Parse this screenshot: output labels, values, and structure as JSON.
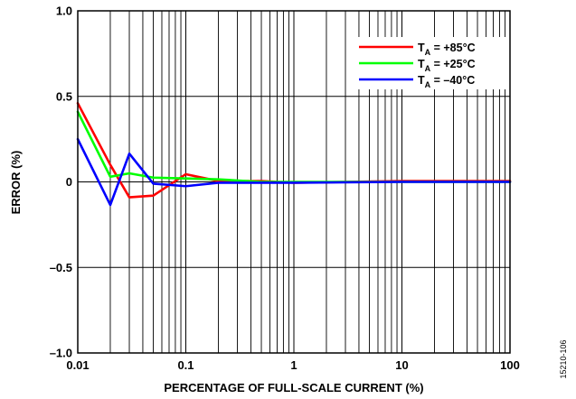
{
  "chart_data": {
    "type": "line",
    "xlabel": "PERCENTAGE OF FULL-SCALE CURRENT (%)",
    "ylabel": "ERROR (%)",
    "x_scale": "log",
    "xlim": [
      0.01,
      100
    ],
    "ylim": [
      -1.0,
      1.0
    ],
    "x_ticks": [
      0.01,
      0.1,
      1,
      10,
      100
    ],
    "x_tick_labels": [
      "0.01",
      "0.1",
      "1",
      "10",
      "100"
    ],
    "y_ticks": [
      1.0,
      0.5,
      0,
      -0.5,
      -1.0
    ],
    "y_tick_labels": [
      "1.0",
      "0.5",
      "0",
      "–0.5",
      "–1.0"
    ],
    "grid": true,
    "legend_position": "top-right",
    "series": [
      {
        "label_main": "T",
        "label_sub": "A",
        "label_rest": " = +85°C",
        "color": "#ff0000",
        "x": [
          0.01,
          0.02,
          0.03,
          0.05,
          0.1,
          0.2,
          0.5,
          1,
          10,
          100
        ],
        "y": [
          0.46,
          0.1,
          -0.09,
          -0.08,
          0.045,
          0.005,
          0.005,
          -0.005,
          0.005,
          0.005
        ]
      },
      {
        "label_main": "T",
        "label_sub": "A",
        "label_rest": " = +25°C",
        "color": "#00ff00",
        "x": [
          0.01,
          0.02,
          0.03,
          0.05,
          0.1,
          0.2,
          0.5,
          1,
          10,
          100
        ],
        "y": [
          0.41,
          0.03,
          0.05,
          0.025,
          0.02,
          0.015,
          0.0,
          0.0,
          0.0,
          0.0
        ]
      },
      {
        "label_main": "T",
        "label_sub": "A",
        "label_rest": " = –40°C",
        "color": "#0000ff",
        "x": [
          0.01,
          0.02,
          0.03,
          0.05,
          0.1,
          0.2,
          0.5,
          1,
          10,
          100
        ],
        "y": [
          0.25,
          -0.135,
          0.165,
          -0.01,
          -0.025,
          -0.005,
          -0.005,
          -0.005,
          0.0,
          0.0
        ]
      }
    ]
  },
  "figure_id": "15210-106"
}
